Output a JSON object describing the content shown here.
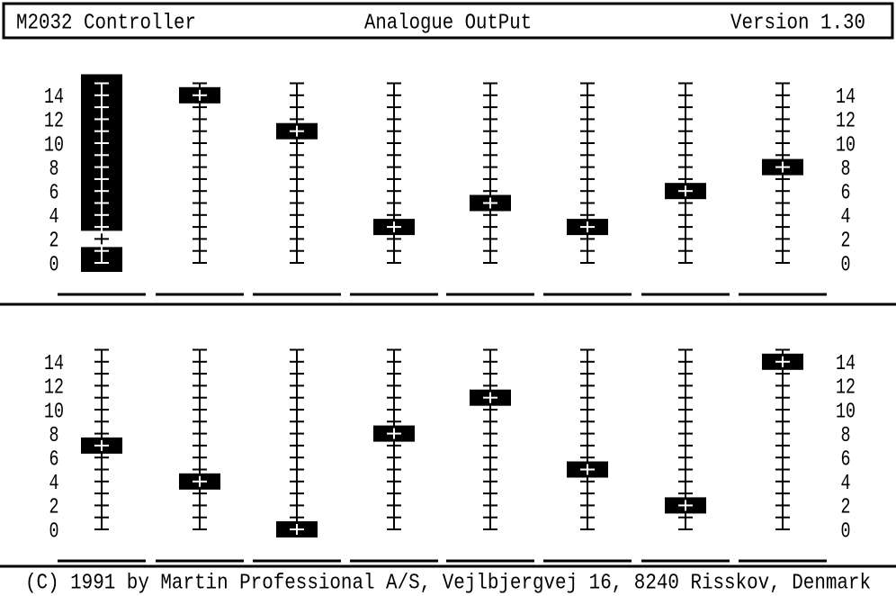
{
  "header": {
    "left": "M2032 Controller",
    "center": "Analogue OutPut",
    "right": "Version 1.30"
  },
  "scale": {
    "range": [
      0,
      15
    ],
    "labels": [
      0,
      2,
      4,
      6,
      8,
      10,
      12,
      14
    ]
  },
  "panels": [
    {
      "selected_channel": 0,
      "values": [
        2,
        14,
        11,
        3,
        5,
        3,
        6,
        8
      ]
    },
    {
      "values": [
        7,
        4,
        0,
        8,
        11,
        5,
        2,
        14
      ]
    }
  ],
  "footer": "(C) 1991 by Martin Professional A/S, Vejlbjergvej 16, 8240 Risskov, Denmark"
}
